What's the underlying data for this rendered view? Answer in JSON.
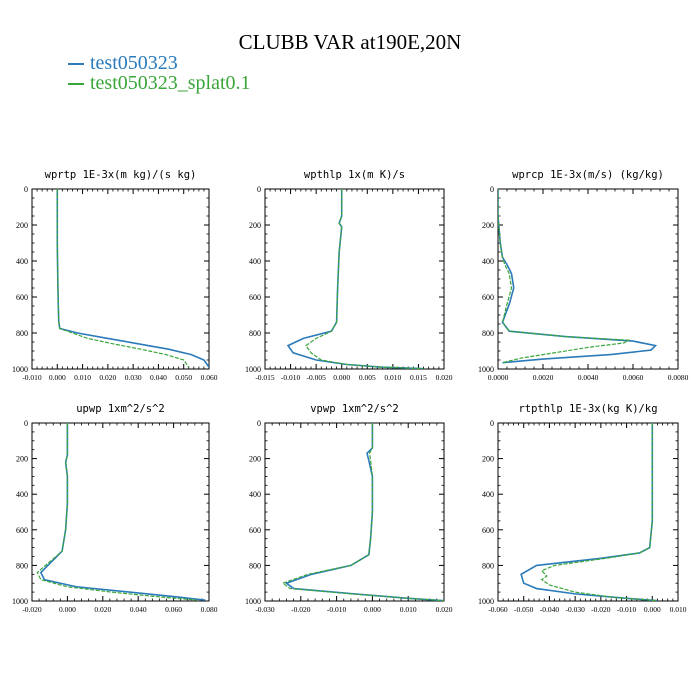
{
  "figure": {
    "title": "CLUBB VAR at190E,20N"
  },
  "legend": [
    {
      "name": "test050323",
      "color": "#2b7bba"
    },
    {
      "name": "test050323_splat0.1",
      "color": "#3aa63a"
    }
  ],
  "chart_data": [
    {
      "type": "line",
      "title": "wprtp  1E-3x(m kg)/(s kg)",
      "xlim": [
        -0.01,
        0.06
      ],
      "ylim": [
        1000,
        0
      ],
      "xticks": [
        -0.01,
        0.0,
        0.01,
        0.02,
        0.03,
        0.04,
        0.05,
        0.06
      ],
      "xtick_labels": [
        "-0.010",
        "0.000",
        "0.010",
        "0.020",
        "0.030",
        "0.040",
        "0.050",
        "0.060"
      ],
      "yticks": [
        0,
        200,
        400,
        600,
        800,
        1000
      ],
      "ytick_labels": [
        "0",
        "200",
        "400",
        "600",
        "800",
        "1000"
      ],
      "series": [
        {
          "name": "test050323",
          "color": "#2b7bba",
          "x": [
            0.0,
            0.0,
            0.0002,
            0.0004,
            0.0006,
            0.001,
            0.008,
            0.02,
            0.032,
            0.044,
            0.053,
            0.058,
            0.06
          ],
          "y": [
            0,
            300,
            500,
            650,
            740,
            775,
            800,
            830,
            860,
            890,
            920,
            950,
            990
          ]
        },
        {
          "name": "test050323_splat0.1",
          "color": "#3aa63a",
          "x": [
            0.0,
            0.0,
            0.0002,
            0.0004,
            0.0006,
            0.001,
            0.006,
            0.012,
            0.022,
            0.033,
            0.043,
            0.05,
            0.052
          ],
          "y": [
            0,
            300,
            500,
            650,
            740,
            775,
            800,
            830,
            860,
            890,
            920,
            950,
            990
          ]
        }
      ]
    },
    {
      "type": "line",
      "title": "wpthlp  1x(m K)/s",
      "xlim": [
        -0.015,
        0.02
      ],
      "ylim": [
        1000,
        0
      ],
      "xticks": [
        -0.015,
        -0.01,
        -0.005,
        0.0,
        0.005,
        0.01,
        0.015,
        0.02
      ],
      "xtick_labels": [
        "-0.015",
        "-0.010",
        "-0.005",
        "0.000",
        "0.005",
        "0.010",
        "0.015",
        "0.020"
      ],
      "yticks": [
        0,
        200,
        400,
        600,
        800,
        1000
      ],
      "ytick_labels": [
        "0",
        "200",
        "400",
        "600",
        "800",
        "1000"
      ],
      "series": [
        {
          "name": "test050323",
          "color": "#2b7bba",
          "x": [
            0.0,
            0.0,
            -0.0005,
            0.0,
            -0.0005,
            -0.0008,
            -0.001,
            -0.002,
            -0.0075,
            -0.0105,
            -0.0095,
            -0.005,
            0.001,
            0.008,
            0.016
          ],
          "y": [
            0,
            150,
            190,
            210,
            350,
            550,
            740,
            790,
            830,
            870,
            910,
            950,
            975,
            990,
            998
          ]
        },
        {
          "name": "test050323_splat0.1",
          "color": "#3aa63a",
          "x": [
            0.0,
            0.0,
            -0.0005,
            0.0,
            -0.0005,
            -0.0008,
            -0.001,
            -0.002,
            -0.005,
            -0.007,
            -0.006,
            -0.004,
            0.001,
            0.008,
            0.016
          ],
          "y": [
            0,
            150,
            190,
            210,
            350,
            550,
            740,
            790,
            830,
            870,
            910,
            950,
            975,
            990,
            998
          ]
        }
      ]
    },
    {
      "type": "line",
      "title": "wprcp  1E-3x(m/s) (kg/kg)",
      "xlim": [
        0.0,
        0.008
      ],
      "ylim": [
        1000,
        0
      ],
      "xticks": [
        0.0,
        0.002,
        0.004,
        0.006,
        0.008
      ],
      "xtick_labels": [
        "0.0000",
        "0.0020",
        "0.0040",
        "0.0060",
        "0.0080"
      ],
      "yticks": [
        0,
        200,
        400,
        600,
        800,
        1000
      ],
      "ytick_labels": [
        "0",
        "200",
        "400",
        "600",
        "800",
        "1000"
      ],
      "series": [
        {
          "name": "test050323",
          "color": "#2b7bba",
          "x": [
            0.0,
            0.0,
            0.0001,
            0.0002,
            0.0004,
            0.0006,
            0.0007,
            0.0005,
            0.0002,
            0.0005,
            0.003,
            0.006,
            0.007,
            0.0068,
            0.005,
            0.002,
            0.0002
          ],
          "y": [
            0,
            150,
            300,
            380,
            420,
            470,
            550,
            640,
            740,
            790,
            820,
            845,
            870,
            895,
            920,
            945,
            965
          ]
        },
        {
          "name": "test050323_splat0.1",
          "color": "#3aa63a",
          "x": [
            0.0,
            0.0,
            0.0001,
            0.0002,
            0.0003,
            0.0005,
            0.0006,
            0.0004,
            0.0002,
            0.0005,
            0.003,
            0.0058,
            0.0056,
            0.004,
            0.0025,
            0.001,
            0.0002
          ],
          "y": [
            0,
            150,
            300,
            380,
            420,
            470,
            550,
            640,
            740,
            790,
            820,
            840,
            855,
            880,
            910,
            940,
            965
          ]
        }
      ]
    },
    {
      "type": "line",
      "title": "upwp  1xm^2/s^2",
      "xlim": [
        -0.02,
        0.08
      ],
      "ylim": [
        1000,
        0
      ],
      "xticks": [
        -0.02,
        0.0,
        0.02,
        0.04,
        0.06,
        0.08
      ],
      "xtick_labels": [
        "-0.020",
        "0.000",
        "0.020",
        "0.040",
        "0.060",
        "0.080"
      ],
      "yticks": [
        0,
        200,
        400,
        600,
        800,
        1000
      ],
      "ytick_labels": [
        "0",
        "200",
        "400",
        "600",
        "800",
        "1000"
      ],
      "series": [
        {
          "name": "test050323",
          "color": "#2b7bba",
          "x": [
            0.0,
            0.0,
            -0.001,
            0.0,
            0.0,
            -0.001,
            -0.003,
            -0.009,
            -0.015,
            -0.013,
            0.005,
            0.035,
            0.06,
            0.078
          ],
          "y": [
            0,
            180,
            220,
            300,
            450,
            600,
            720,
            780,
            840,
            880,
            920,
            950,
            975,
            995
          ]
        },
        {
          "name": "test050323_splat0.1",
          "color": "#3aa63a",
          "x": [
            0.0,
            0.0,
            -0.001,
            0.0,
            0.0,
            -0.001,
            -0.003,
            -0.01,
            -0.017,
            -0.015,
            0.0,
            0.025,
            0.05,
            0.073
          ],
          "y": [
            0,
            180,
            220,
            300,
            450,
            600,
            720,
            780,
            840,
            880,
            920,
            950,
            975,
            995
          ]
        }
      ]
    },
    {
      "type": "line",
      "title": "vpwp  1xm^2/s^2",
      "xlim": [
        -0.03,
        0.02
      ],
      "ylim": [
        1000,
        0
      ],
      "xticks": [
        -0.03,
        -0.02,
        -0.01,
        0.0,
        0.01,
        0.02
      ],
      "xtick_labels": [
        "-0.030",
        "-0.020",
        "-0.010",
        "0.000",
        "0.010",
        "0.020"
      ],
      "yticks": [
        0,
        200,
        400,
        600,
        800,
        1000
      ],
      "ytick_labels": [
        "0",
        "200",
        "400",
        "600",
        "800",
        "1000"
      ],
      "series": [
        {
          "name": "test050323",
          "color": "#2b7bba",
          "x": [
            0.0,
            0.0,
            -0.0015,
            -0.001,
            0.0,
            0.0,
            -0.0005,
            -0.001,
            -0.006,
            -0.017,
            -0.024,
            -0.022,
            -0.005,
            0.01,
            0.02
          ],
          "y": [
            0,
            140,
            170,
            210,
            300,
            500,
            650,
            740,
            800,
            850,
            900,
            930,
            960,
            985,
            998
          ]
        },
        {
          "name": "test050323_splat0.1",
          "color": "#3aa63a",
          "x": [
            0.0,
            0.0,
            -0.0008,
            -0.0005,
            0.0,
            0.0,
            -0.0005,
            -0.001,
            -0.006,
            -0.018,
            -0.025,
            -0.023,
            -0.006,
            0.01,
            0.02
          ],
          "y": [
            0,
            140,
            170,
            210,
            300,
            500,
            650,
            740,
            800,
            850,
            900,
            930,
            960,
            985,
            998
          ]
        }
      ]
    },
    {
      "type": "line",
      "title": "rtpthlp  1E-3x(kg K)/kg",
      "xlim": [
        -0.06,
        0.01
      ],
      "ylim": [
        1000,
        0
      ],
      "xticks": [
        -0.06,
        -0.05,
        -0.04,
        -0.03,
        -0.02,
        -0.01,
        0.0,
        0.01
      ],
      "xtick_labels": [
        "-0.060",
        "-0.050",
        "-0.040",
        "-0.030",
        "-0.020",
        "-0.010",
        "0.000",
        "0.010"
      ],
      "yticks": [
        0,
        200,
        400,
        600,
        800,
        1000
      ],
      "ytick_labels": [
        "0",
        "200",
        "400",
        "600",
        "800",
        "1000"
      ],
      "series": [
        {
          "name": "test050323",
          "color": "#2b7bba",
          "x": [
            0.0,
            0.0,
            0.0,
            -0.001,
            -0.005,
            -0.02,
            -0.045,
            -0.051,
            -0.05,
            -0.045,
            -0.03,
            -0.01,
            0.002
          ],
          "y": [
            0,
            300,
            550,
            700,
            730,
            760,
            800,
            850,
            900,
            930,
            960,
            985,
            998
          ]
        },
        {
          "name": "test050323_splat0.1",
          "color": "#3aa63a",
          "x": [
            0.0,
            0.0,
            0.0,
            -0.001,
            -0.005,
            -0.018,
            -0.038,
            -0.043,
            -0.041,
            -0.043,
            -0.04,
            -0.03,
            -0.015,
            0.002
          ],
          "y": [
            0,
            300,
            550,
            700,
            730,
            760,
            800,
            830,
            860,
            880,
            910,
            950,
            980,
            998
          ]
        }
      ]
    }
  ]
}
